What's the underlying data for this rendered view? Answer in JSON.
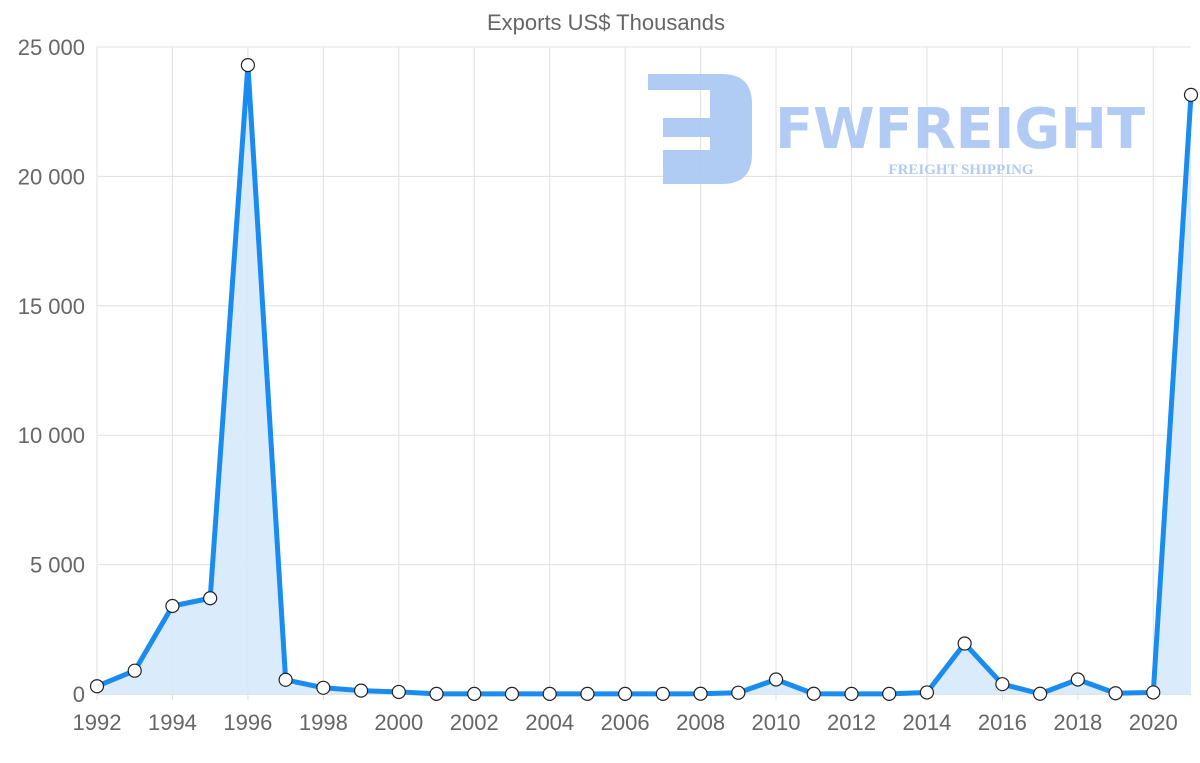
{
  "chart_data": {
    "type": "area",
    "title": "Exports US$ Thousands",
    "xlabel": "",
    "ylabel": "",
    "x": [
      1992,
      1993,
      1994,
      1995,
      1996,
      1997,
      1998,
      1999,
      2000,
      2001,
      2002,
      2003,
      2004,
      2005,
      2006,
      2007,
      2008,
      2009,
      2010,
      2011,
      2012,
      2013,
      2014,
      2015,
      2016,
      2017,
      2018,
      2019,
      2020,
      2021
    ],
    "series": [
      {
        "name": "Exports US$ Thousands",
        "values": [
          300,
          900,
          3400,
          3700,
          24300,
          550,
          240,
          130,
          80,
          5,
          5,
          5,
          5,
          5,
          5,
          5,
          10,
          50,
          560,
          10,
          5,
          5,
          60,
          1950,
          380,
          10,
          560,
          30,
          60,
          23150
        ]
      }
    ],
    "ylim": [
      0,
      25000
    ],
    "yticks": [
      0,
      5000,
      10000,
      15000,
      20000,
      25000
    ],
    "ytick_labels": [
      "0",
      "5 000",
      "10 000",
      "15 000",
      "20 000",
      "25 000"
    ],
    "xtick_labels": [
      "1992",
      "1994",
      "1996",
      "1998",
      "2000",
      "2002",
      "2004",
      "2006",
      "2008",
      "2010",
      "2012",
      "2014",
      "2016",
      "2018",
      "2020"
    ],
    "grid": true,
    "legend": "none",
    "colors": {
      "line": "#1a8cf0",
      "fill": "#d6eafb",
      "grid": "#e0e0e0",
      "watermark": "#a9c6f3"
    }
  },
  "watermark": {
    "brand": "FWFREIGHT",
    "tagline": "FREIGHT SHIPPING"
  }
}
